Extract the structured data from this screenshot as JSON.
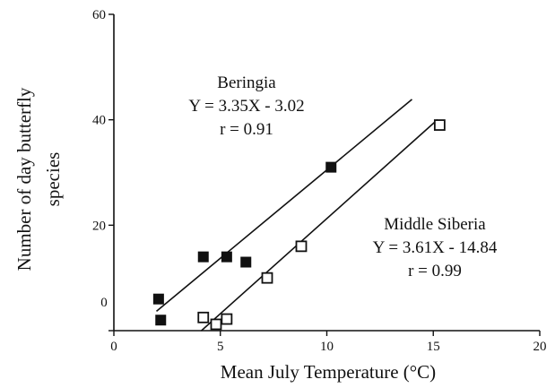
{
  "chart_data": {
    "type": "scatter",
    "xlabel": "Mean July Temperature (°C)",
    "ylabel_lines": [
      "Number of day butterfly",
      "species"
    ],
    "xlim": [
      0,
      20
    ],
    "ylim": [
      0,
      60
    ],
    "x_ticks": [
      0,
      5,
      10,
      15,
      20
    ],
    "y_ticks": [
      0,
      20,
      40,
      60
    ],
    "y_tick_labels": [
      "",
      "20",
      "40",
      "60"
    ],
    "y_offscale_label": "0",
    "grid": false,
    "series": [
      {
        "name": "Beringia",
        "marker": "filled-square",
        "points": [
          [
            2.1,
            6
          ],
          [
            2.2,
            2
          ],
          [
            4.2,
            14
          ],
          [
            5.3,
            14
          ],
          [
            6.2,
            13
          ],
          [
            10.2,
            31
          ]
        ],
        "fit": {
          "slope": 3.35,
          "intercept": -3.02,
          "x_range": [
            2.0,
            14.0
          ]
        },
        "annotation": [
          "Beringia",
          "Y = 3.35X - 3.02",
          "r = 0.91"
        ]
      },
      {
        "name": "Middle Siberia",
        "marker": "open-square",
        "points": [
          [
            4.2,
            2.5
          ],
          [
            4.8,
            1.2
          ],
          [
            5.3,
            2.2
          ],
          [
            7.2,
            10
          ],
          [
            8.8,
            16
          ],
          [
            15.3,
            39
          ]
        ],
        "fit": {
          "slope": 3.61,
          "intercept": -14.84,
          "x_range": [
            4.1,
            15.2
          ]
        },
        "annotation": [
          "Middle Siberia",
          "Y = 3.61X - 14.84",
          "r = 0.99"
        ]
      }
    ]
  }
}
